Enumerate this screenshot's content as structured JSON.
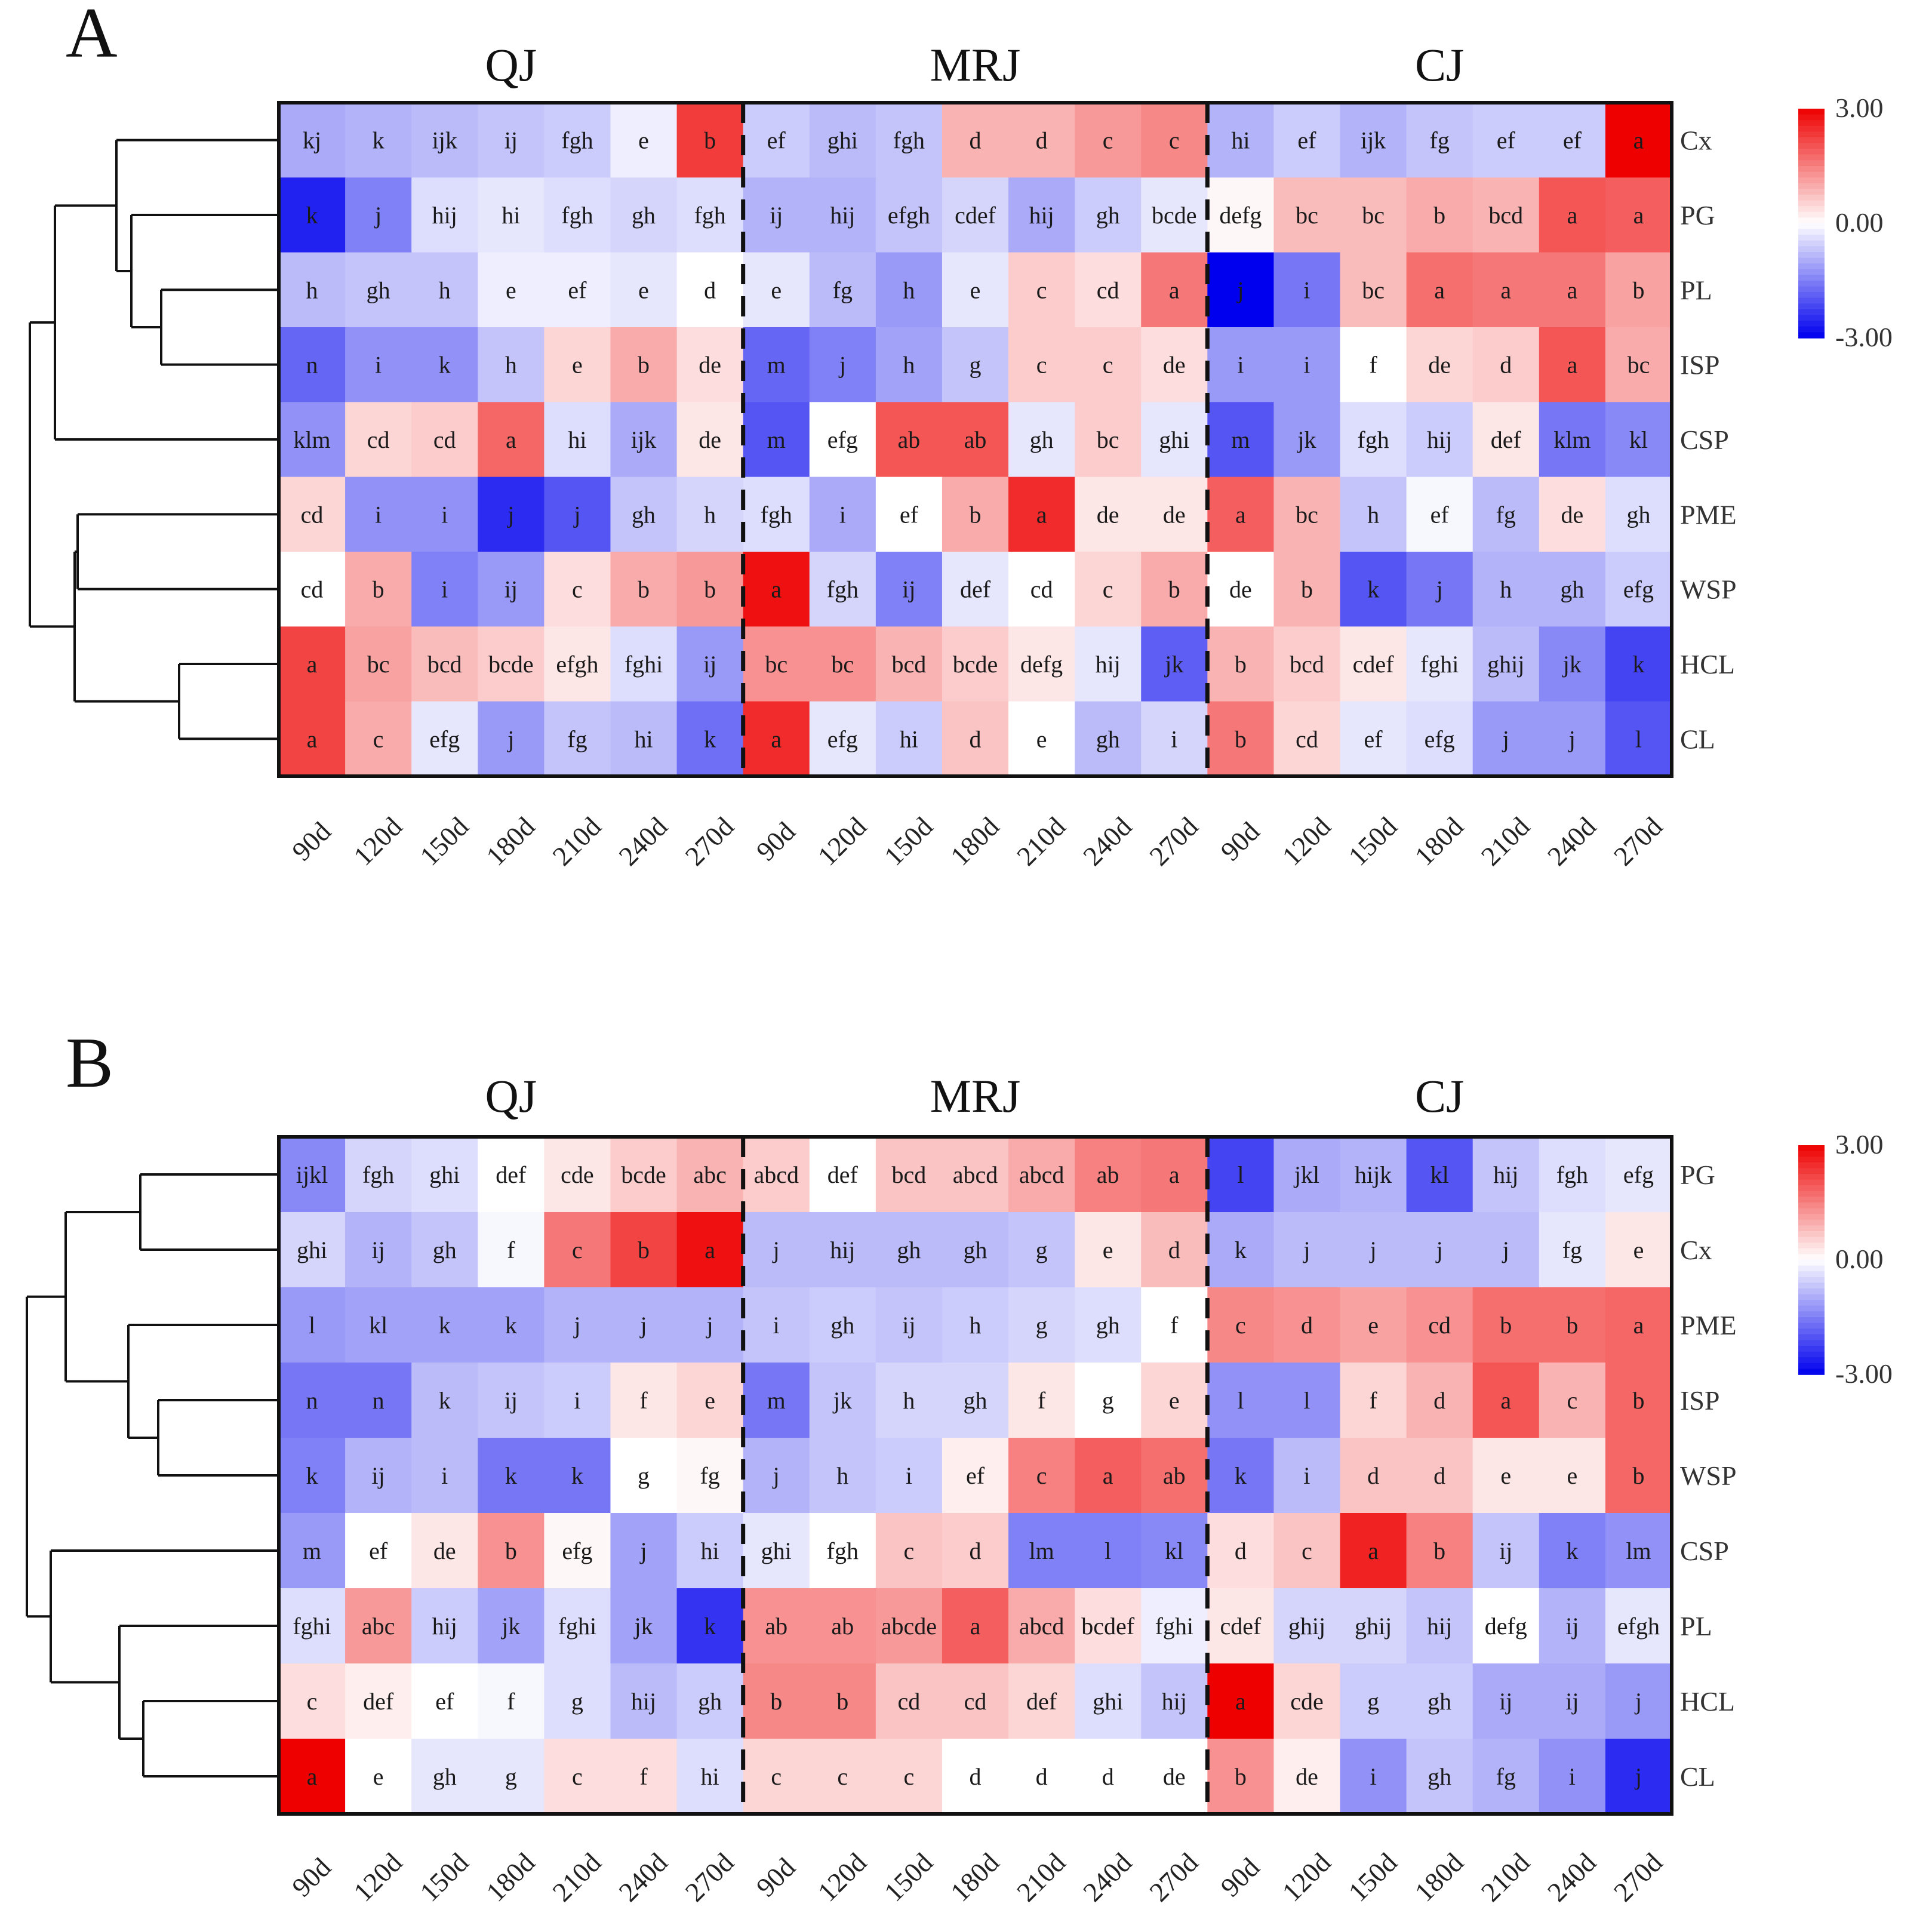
{
  "colors": {
    "low": "#0000ee",
    "mid": "#ffffff",
    "high": "#ee0000",
    "frame": "#111111",
    "tree": "#111111"
  },
  "chart_data": [
    {
      "type": "heatmap",
      "panel": "A",
      "groups": [
        "QJ",
        "MRJ",
        "CJ"
      ],
      "columns": [
        "90d",
        "120d",
        "150d",
        "180d",
        "210d",
        "240d",
        "270d",
        "90d",
        "120d",
        "150d",
        "180d",
        "210d",
        "240d",
        "270d",
        "90d",
        "120d",
        "150d",
        "180d",
        "210d",
        "240d",
        "270d"
      ],
      "rows": [
        "Cx",
        "PG",
        "PL",
        "ISP",
        "CSP",
        "PME",
        "WSP",
        "HCL",
        "CL"
      ],
      "value_range": [
        -3,
        3
      ],
      "colorbar_labels": [
        "3.00",
        "0.00",
        "-3.00"
      ],
      "values": [
        [
          -1.0,
          -0.9,
          -0.8,
          -0.7,
          -0.6,
          -0.2,
          2.3,
          -0.6,
          -0.8,
          -0.7,
          0.9,
          0.9,
          1.2,
          1.4,
          -0.9,
          -0.6,
          -0.9,
          -0.7,
          -0.6,
          -0.6,
          3.0
        ],
        [
          -2.6,
          -1.5,
          -0.4,
          -0.3,
          -0.4,
          -0.5,
          -0.4,
          -0.9,
          -0.9,
          -0.7,
          -0.5,
          -1.0,
          -0.6,
          -0.3,
          0.1,
          0.8,
          0.8,
          1.0,
          0.9,
          2.0,
          1.9
        ],
        [
          -0.8,
          -0.7,
          -0.7,
          -0.2,
          -0.2,
          -0.3,
          0.0,
          -0.3,
          -0.8,
          -1.2,
          -0.3,
          0.6,
          0.4,
          1.6,
          -3.0,
          -1.6,
          0.8,
          1.7,
          1.6,
          1.6,
          1.1
        ],
        [
          -1.8,
          -1.3,
          -1.3,
          -0.7,
          0.5,
          1.0,
          0.4,
          -1.8,
          -1.5,
          -1.1,
          -0.7,
          0.6,
          0.6,
          0.4,
          -1.2,
          -1.2,
          0.0,
          0.5,
          0.6,
          2.0,
          1.0
        ],
        [
          -1.3,
          0.5,
          0.6,
          1.8,
          -0.4,
          -1.0,
          0.3,
          -2.0,
          0.0,
          2.0,
          2.0,
          -0.3,
          0.6,
          -0.3,
          -2.0,
          -1.2,
          -0.4,
          -0.6,
          0.3,
          -1.6,
          -1.4
        ],
        [
          0.5,
          -1.3,
          -1.3,
          -2.5,
          -2.0,
          -0.7,
          -0.5,
          -0.4,
          -1.0,
          0.0,
          1.0,
          2.5,
          0.3,
          0.3,
          1.9,
          0.9,
          -0.7,
          -0.1,
          -0.8,
          0.4,
          -0.4
        ],
        [
          0.0,
          1.0,
          -1.5,
          -1.2,
          0.4,
          1.0,
          1.2,
          2.8,
          -0.5,
          -1.5,
          -0.3,
          0.0,
          0.5,
          1.0,
          0.0,
          0.9,
          -2.0,
          -1.6,
          -0.9,
          -0.9,
          -0.6
        ],
        [
          2.2,
          1.1,
          0.8,
          0.6,
          0.3,
          -0.4,
          -1.2,
          1.3,
          1.3,
          0.9,
          0.6,
          0.3,
          -0.3,
          -1.9,
          0.9,
          0.6,
          0.3,
          -0.3,
          -0.8,
          -1.4,
          -2.2
        ],
        [
          2.2,
          1.0,
          -0.3,
          -1.2,
          -0.7,
          -0.8,
          -1.7,
          2.5,
          -0.3,
          -0.6,
          0.7,
          0.0,
          -0.8,
          -0.5,
          1.6,
          0.5,
          -0.3,
          -0.4,
          -1.2,
          -1.2,
          -2.0
        ]
      ],
      "cell_labels": [
        [
          "kj",
          "k",
          "ijk",
          "ij",
          "fgh",
          "e",
          "b",
          "ef",
          "ghi",
          "fgh",
          "d",
          "d",
          "c",
          "c",
          "hi",
          "ef",
          "ijk",
          "fg",
          "ef",
          "ef",
          "a"
        ],
        [
          "k",
          "j",
          "hij",
          "hi",
          "fgh",
          "gh",
          "fgh",
          "ij",
          "hij",
          "efgh",
          "cdef",
          "hij",
          "gh",
          "bcde",
          "defg",
          "bc",
          "bc",
          "b",
          "bcd",
          "a",
          "a"
        ],
        [
          "h",
          "gh",
          "h",
          "e",
          "ef",
          "e",
          "d",
          "e",
          "fg",
          "h",
          "e",
          "c",
          "cd",
          "a",
          "j",
          "i",
          "bc",
          "a",
          "a",
          "a",
          "b"
        ],
        [
          "n",
          "i",
          "k",
          "h",
          "e",
          "b",
          "de",
          "m",
          "j",
          "h",
          "g",
          "c",
          "c",
          "de",
          "i",
          "i",
          "f",
          "de",
          "d",
          "a",
          "bc"
        ],
        [
          "klm",
          "cd",
          "cd",
          "a",
          "hi",
          "ijk",
          "de",
          "m",
          "efg",
          "ab",
          "ab",
          "gh",
          "bc",
          "ghi",
          "m",
          "jk",
          "fgh",
          "hij",
          "def",
          "klm",
          "kl"
        ],
        [
          "cd",
          "i",
          "i",
          "j",
          "j",
          "gh",
          "h",
          "fgh",
          "i",
          "ef",
          "b",
          "a",
          "de",
          "de",
          "a",
          "bc",
          "h",
          "ef",
          "fg",
          "de",
          "gh"
        ],
        [
          "cd",
          "b",
          "i",
          "ij",
          "c",
          "b",
          "b",
          "a",
          "fgh",
          "ij",
          "def",
          "cd",
          "c",
          "b",
          "de",
          "b",
          "k",
          "j",
          "h",
          "gh",
          "efg"
        ],
        [
          "a",
          "bc",
          "bcd",
          "bcde",
          "efgh",
          "fghi",
          "ij",
          "bc",
          "bc",
          "bcd",
          "bcde",
          "defg",
          "hij",
          "jk",
          "b",
          "bcd",
          "cdef",
          "fghi",
          "ghij",
          "jk",
          "k"
        ],
        [
          "a",
          "c",
          "efg",
          "j",
          "fg",
          "hi",
          "k",
          "a",
          "efg",
          "hi",
          "d",
          "e",
          "gh",
          "i",
          "b",
          "cd",
          "ef",
          "efg",
          "j",
          "j",
          "l"
        ]
      ]
    },
    {
      "type": "heatmap",
      "panel": "B",
      "groups": [
        "QJ",
        "MRJ",
        "CJ"
      ],
      "columns": [
        "90d",
        "120d",
        "150d",
        "180d",
        "210d",
        "240d",
        "270d",
        "90d",
        "120d",
        "150d",
        "180d",
        "210d",
        "240d",
        "270d",
        "90d",
        "120d",
        "150d",
        "180d",
        "210d",
        "240d",
        "270d"
      ],
      "rows": [
        "PG",
        "Cx",
        "PME",
        "ISP",
        "WSP",
        "CSP",
        "PL",
        "HCL",
        "CL"
      ],
      "value_range": [
        -3,
        3
      ],
      "colorbar_labels": [
        "3.00",
        "0.00",
        "-3.00"
      ],
      "values": [
        [
          -1.4,
          -0.5,
          -0.4,
          0.0,
          0.3,
          0.6,
          0.9,
          0.6,
          0.0,
          0.7,
          0.7,
          1.0,
          1.5,
          1.6,
          -2.2,
          -1.0,
          -0.9,
          -2.0,
          -0.7,
          -0.4,
          -0.3
        ],
        [
          -0.5,
          -0.9,
          -0.7,
          -0.1,
          1.6,
          2.2,
          2.8,
          -0.8,
          -0.8,
          -0.8,
          -0.8,
          -0.7,
          0.3,
          0.8,
          -1.0,
          -0.8,
          -0.8,
          -0.8,
          -0.8,
          -0.3,
          0.3
        ],
        [
          -1.2,
          -1.1,
          -1.1,
          -1.1,
          -0.9,
          -0.9,
          -0.9,
          -0.7,
          -0.6,
          -0.7,
          -0.6,
          -0.5,
          -0.4,
          0.0,
          1.4,
          1.3,
          1.1,
          1.3,
          1.7,
          1.7,
          1.8
        ],
        [
          -1.6,
          -1.6,
          -0.8,
          -0.7,
          -0.6,
          0.3,
          0.5,
          -1.6,
          -0.7,
          -0.5,
          -0.5,
          0.3,
          0.0,
          0.5,
          -1.3,
          -1.3,
          0.5,
          0.9,
          2.0,
          0.9,
          1.8
        ],
        [
          -1.5,
          -0.9,
          -0.8,
          -1.6,
          -1.6,
          0.0,
          0.1,
          -0.9,
          -0.7,
          -0.6,
          0.2,
          1.5,
          1.9,
          1.7,
          -1.6,
          -0.8,
          0.7,
          0.7,
          0.3,
          0.3,
          1.8
        ],
        [
          -1.2,
          0.0,
          0.3,
          1.3,
          0.1,
          -1.1,
          -0.6,
          -0.3,
          0.0,
          0.7,
          0.6,
          -1.5,
          -1.5,
          -1.4,
          0.4,
          0.7,
          2.6,
          1.5,
          -0.7,
          -1.5,
          -1.3
        ],
        [
          -0.4,
          1.2,
          -0.6,
          -1.1,
          -0.4,
          -1.1,
          -2.4,
          1.3,
          1.3,
          1.2,
          1.9,
          1.0,
          0.4,
          -0.2,
          0.3,
          -0.5,
          -0.5,
          -0.7,
          0.0,
          -0.9,
          -0.3
        ],
        [
          0.4,
          0.2,
          0.0,
          -0.1,
          -0.4,
          -0.8,
          -0.6,
          1.4,
          1.4,
          0.7,
          0.7,
          0.5,
          -0.4,
          -0.7,
          3.0,
          0.5,
          -0.6,
          -0.6,
          -1.0,
          -1.0,
          -1.2
        ],
        [
          3.0,
          0.0,
          -0.3,
          -0.3,
          0.4,
          0.4,
          -0.4,
          0.5,
          0.5,
          0.5,
          0.0,
          0.0,
          0.0,
          0.0,
          1.3,
          0.2,
          -1.3,
          -0.7,
          -0.9,
          -1.3,
          -2.5
        ]
      ],
      "cell_labels": [
        [
          "ijkl",
          "fgh",
          "ghi",
          "def",
          "cde",
          "bcde",
          "abc",
          "abcd",
          "def",
          "bcd",
          "abcd",
          "abcd",
          "ab",
          "a",
          "l",
          "jkl",
          "hijk",
          "kl",
          "hij",
          "fgh",
          "efg"
        ],
        [
          "ghi",
          "ij",
          "gh",
          "f",
          "c",
          "b",
          "a",
          "j",
          "hij",
          "gh",
          "gh",
          "g",
          "e",
          "d",
          "k",
          "j",
          "j",
          "j",
          "j",
          "fg",
          "e"
        ],
        [
          "l",
          "kl",
          "k",
          "k",
          "j",
          "j",
          "j",
          "i",
          "gh",
          "ij",
          "h",
          "g",
          "gh",
          "f",
          "c",
          "d",
          "e",
          "cd",
          "b",
          "b",
          "a"
        ],
        [
          "n",
          "n",
          "k",
          "ij",
          "i",
          "f",
          "e",
          "m",
          "jk",
          "h",
          "gh",
          "f",
          "g",
          "e",
          "l",
          "l",
          "f",
          "d",
          "a",
          "c",
          "b"
        ],
        [
          "k",
          "ij",
          "i",
          "k",
          "k",
          "g",
          "fg",
          "j",
          "h",
          "i",
          "ef",
          "c",
          "a",
          "ab",
          "k",
          "i",
          "d",
          "d",
          "e",
          "e",
          "b"
        ],
        [
          "m",
          "ef",
          "de",
          "b",
          "efg",
          "j",
          "hi",
          "ghi",
          "fgh",
          "c",
          "d",
          "lm",
          "l",
          "kl",
          "d",
          "c",
          "a",
          "b",
          "ij",
          "k",
          "lm"
        ],
        [
          "fghi",
          "abc",
          "hij",
          "jk",
          "fghi",
          "jk",
          "k",
          "ab",
          "ab",
          "abcde",
          "a",
          "abcd",
          "bcdef",
          "fghi",
          "cdef",
          "ghij",
          "ghij",
          "hij",
          "defg",
          "ij",
          "efgh"
        ],
        [
          "c",
          "def",
          "ef",
          "f",
          "g",
          "hij",
          "gh",
          "b",
          "b",
          "cd",
          "cd",
          "def",
          "ghi",
          "hij",
          "a",
          "cde",
          "g",
          "gh",
          "ij",
          "ij",
          "j"
        ],
        [
          "a",
          "e",
          "gh",
          "g",
          "c",
          "f",
          "hi",
          "c",
          "c",
          "c",
          "d",
          "d",
          "d",
          "de",
          "b",
          "de",
          "i",
          "gh",
          "fg",
          "i",
          "j"
        ]
      ]
    }
  ]
}
